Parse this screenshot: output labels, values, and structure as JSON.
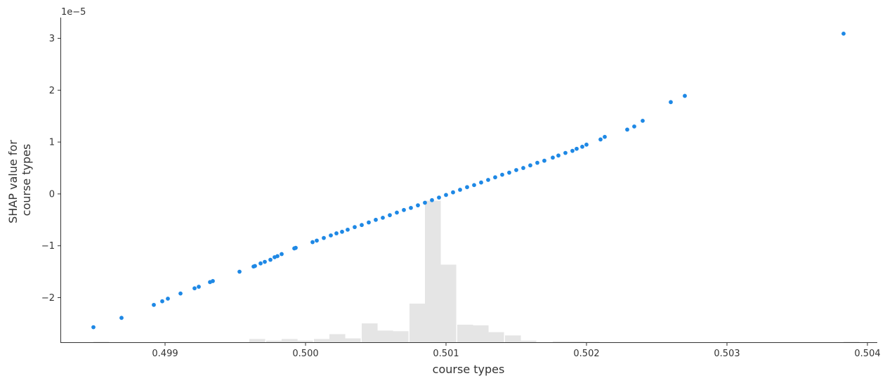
{
  "chart_data": {
    "type": "scatter",
    "xlabel": "course types",
    "ylabel": [
      "SHAP value for",
      "course types"
    ],
    "y_offset_label": "1e−5",
    "xlim": [
      0.49826,
      0.50407
    ],
    "ylim": [
      -2.86,
      3.4
    ],
    "x_ticks": [
      0.499,
      0.5,
      0.501,
      0.502,
      0.503,
      0.504
    ],
    "x_tick_labels": [
      "0.499",
      "0.500",
      "0.501",
      "0.502",
      "0.503",
      "0.504"
    ],
    "y_ticks": [
      -2,
      -1,
      0,
      1,
      2,
      3
    ],
    "y_tick_labels": [
      "−2",
      "−1",
      "0",
      "1",
      "2",
      "3"
    ],
    "grid": false,
    "point_color": "#1e88e5",
    "hist_color": "#e5e5e5",
    "points": [
      [
        0.49849,
        -2.57
      ],
      [
        0.49869,
        -2.39
      ],
      [
        0.49892,
        -2.14
      ],
      [
        0.49898,
        -2.07
      ],
      [
        0.49902,
        -2.02
      ],
      [
        0.49911,
        -1.92
      ],
      [
        0.49921,
        -1.82
      ],
      [
        0.49924,
        -1.79
      ],
      [
        0.49932,
        -1.7
      ],
      [
        0.49934,
        -1.68
      ],
      [
        0.49953,
        -1.5
      ],
      [
        0.49963,
        -1.4
      ],
      [
        0.49964,
        -1.39
      ],
      [
        0.49968,
        -1.34
      ],
      [
        0.49971,
        -1.31
      ],
      [
        0.49975,
        -1.27
      ],
      [
        0.49978,
        -1.22
      ],
      [
        0.4998,
        -1.2
      ],
      [
        0.49983,
        -1.16
      ],
      [
        0.49992,
        -1.05
      ],
      [
        0.49993,
        -1.04
      ],
      [
        0.50005,
        -0.93
      ],
      [
        0.50008,
        -0.9
      ],
      [
        0.50013,
        -0.85
      ],
      [
        0.50018,
        -0.8
      ],
      [
        0.50022,
        -0.76
      ],
      [
        0.50026,
        -0.73
      ],
      [
        0.5003,
        -0.69
      ],
      [
        0.50035,
        -0.64
      ],
      [
        0.5004,
        -0.6
      ],
      [
        0.50045,
        -0.55
      ],
      [
        0.5005,
        -0.5
      ],
      [
        0.50055,
        -0.46
      ],
      [
        0.5006,
        -0.41
      ],
      [
        0.50065,
        -0.36
      ],
      [
        0.5007,
        -0.31
      ],
      [
        0.50075,
        -0.27
      ],
      [
        0.5008,
        -0.22
      ],
      [
        0.50085,
        -0.17
      ],
      [
        0.5009,
        -0.12
      ],
      [
        0.50095,
        -0.07
      ],
      [
        0.501,
        -0.02
      ],
      [
        0.50105,
        0.03
      ],
      [
        0.5011,
        0.08
      ],
      [
        0.50115,
        0.13
      ],
      [
        0.5012,
        0.17
      ],
      [
        0.50125,
        0.22
      ],
      [
        0.5013,
        0.27
      ],
      [
        0.50135,
        0.32
      ],
      [
        0.5014,
        0.37
      ],
      [
        0.50145,
        0.41
      ],
      [
        0.5015,
        0.46
      ],
      [
        0.50155,
        0.5
      ],
      [
        0.5016,
        0.55
      ],
      [
        0.50165,
        0.6
      ],
      [
        0.5017,
        0.64
      ],
      [
        0.50176,
        0.7
      ],
      [
        0.5018,
        0.74
      ],
      [
        0.50185,
        0.79
      ],
      [
        0.5019,
        0.83
      ],
      [
        0.50193,
        0.87
      ],
      [
        0.50197,
        0.91
      ],
      [
        0.502,
        0.95
      ],
      [
        0.5021,
        1.05
      ],
      [
        0.50213,
        1.1
      ],
      [
        0.50229,
        1.24
      ],
      [
        0.50234,
        1.3
      ],
      [
        0.5024,
        1.41
      ],
      [
        0.5026,
        1.77
      ],
      [
        0.5027,
        1.89
      ],
      [
        0.50383,
        3.09
      ]
    ],
    "histogram": {
      "bin_width": 0.000113,
      "bins": [
        [
          0.49849,
          0.2
        ],
        [
          0.4996,
          1.0
        ],
        [
          0.49972,
          0.5
        ],
        [
          0.49983,
          1.0
        ],
        [
          0.49994,
          0.5
        ],
        [
          0.50006,
          1.0
        ],
        [
          0.50017,
          2.5
        ],
        [
          0.50028,
          1.2
        ],
        [
          0.5004,
          5.8
        ],
        [
          0.50051,
          3.6
        ],
        [
          0.50062,
          3.4
        ],
        [
          0.50074,
          11.9
        ],
        [
          0.50085,
          43.6
        ],
        [
          0.50096,
          23.9
        ],
        [
          0.50108,
          5.4
        ],
        [
          0.50119,
          5.2
        ],
        [
          0.5013,
          3.1
        ],
        [
          0.50142,
          2.1
        ],
        [
          0.50153,
          0.5
        ],
        [
          0.50176,
          0.3
        ],
        [
          0.50187,
          0.3
        ],
        [
          0.50198,
          0.2
        ],
        [
          0.50383,
          0.2
        ]
      ]
    }
  }
}
